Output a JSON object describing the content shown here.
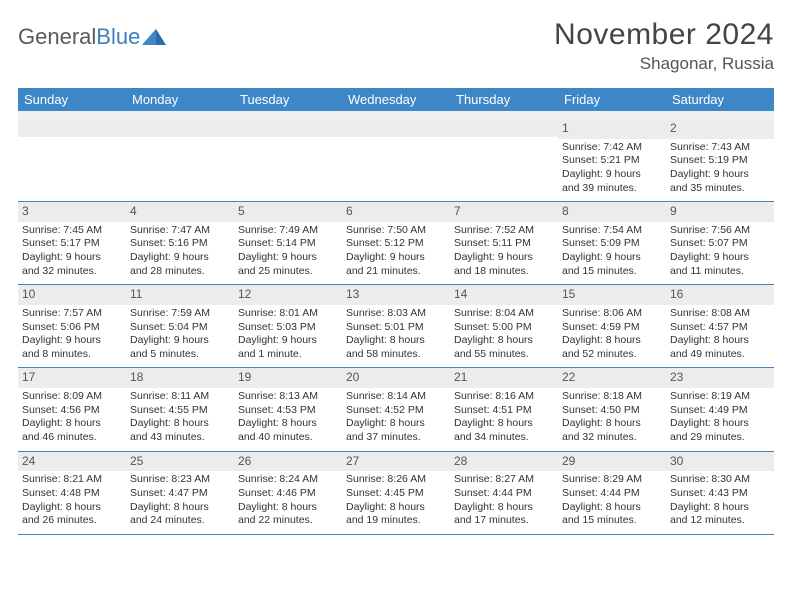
{
  "logo": {
    "word1": "General",
    "word2": "Blue"
  },
  "title": "November 2024",
  "location": "Shagonar, Russia",
  "weekdays": [
    "Sunday",
    "Monday",
    "Tuesday",
    "Wednesday",
    "Thursday",
    "Friday",
    "Saturday"
  ],
  "colors": {
    "header_bg": "#3d87c9",
    "header_text": "#ffffff",
    "number_bg": "#ececec",
    "row_border": "#3d87c9",
    "body_text": "#333333",
    "logo_blue": "#3d7fbf"
  },
  "font_sizes": {
    "title_pt": 22,
    "location_pt": 13,
    "weekday_pt": 10,
    "cell_pt": 8,
    "daynum_pt": 9
  },
  "weeks": [
    [
      {
        "n": "",
        "sr": "",
        "ss": "",
        "dl1": "",
        "dl2": ""
      },
      {
        "n": "",
        "sr": "",
        "ss": "",
        "dl1": "",
        "dl2": ""
      },
      {
        "n": "",
        "sr": "",
        "ss": "",
        "dl1": "",
        "dl2": ""
      },
      {
        "n": "",
        "sr": "",
        "ss": "",
        "dl1": "",
        "dl2": ""
      },
      {
        "n": "",
        "sr": "",
        "ss": "",
        "dl1": "",
        "dl2": ""
      },
      {
        "n": "1",
        "sr": "Sunrise: 7:42 AM",
        "ss": "Sunset: 5:21 PM",
        "dl1": "Daylight: 9 hours",
        "dl2": "and 39 minutes."
      },
      {
        "n": "2",
        "sr": "Sunrise: 7:43 AM",
        "ss": "Sunset: 5:19 PM",
        "dl1": "Daylight: 9 hours",
        "dl2": "and 35 minutes."
      }
    ],
    [
      {
        "n": "3",
        "sr": "Sunrise: 7:45 AM",
        "ss": "Sunset: 5:17 PM",
        "dl1": "Daylight: 9 hours",
        "dl2": "and 32 minutes."
      },
      {
        "n": "4",
        "sr": "Sunrise: 7:47 AM",
        "ss": "Sunset: 5:16 PM",
        "dl1": "Daylight: 9 hours",
        "dl2": "and 28 minutes."
      },
      {
        "n": "5",
        "sr": "Sunrise: 7:49 AM",
        "ss": "Sunset: 5:14 PM",
        "dl1": "Daylight: 9 hours",
        "dl2": "and 25 minutes."
      },
      {
        "n": "6",
        "sr": "Sunrise: 7:50 AM",
        "ss": "Sunset: 5:12 PM",
        "dl1": "Daylight: 9 hours",
        "dl2": "and 21 minutes."
      },
      {
        "n": "7",
        "sr": "Sunrise: 7:52 AM",
        "ss": "Sunset: 5:11 PM",
        "dl1": "Daylight: 9 hours",
        "dl2": "and 18 minutes."
      },
      {
        "n": "8",
        "sr": "Sunrise: 7:54 AM",
        "ss": "Sunset: 5:09 PM",
        "dl1": "Daylight: 9 hours",
        "dl2": "and 15 minutes."
      },
      {
        "n": "9",
        "sr": "Sunrise: 7:56 AM",
        "ss": "Sunset: 5:07 PM",
        "dl1": "Daylight: 9 hours",
        "dl2": "and 11 minutes."
      }
    ],
    [
      {
        "n": "10",
        "sr": "Sunrise: 7:57 AM",
        "ss": "Sunset: 5:06 PM",
        "dl1": "Daylight: 9 hours",
        "dl2": "and 8 minutes."
      },
      {
        "n": "11",
        "sr": "Sunrise: 7:59 AM",
        "ss": "Sunset: 5:04 PM",
        "dl1": "Daylight: 9 hours",
        "dl2": "and 5 minutes."
      },
      {
        "n": "12",
        "sr": "Sunrise: 8:01 AM",
        "ss": "Sunset: 5:03 PM",
        "dl1": "Daylight: 9 hours",
        "dl2": "and 1 minute."
      },
      {
        "n": "13",
        "sr": "Sunrise: 8:03 AM",
        "ss": "Sunset: 5:01 PM",
        "dl1": "Daylight: 8 hours",
        "dl2": "and 58 minutes."
      },
      {
        "n": "14",
        "sr": "Sunrise: 8:04 AM",
        "ss": "Sunset: 5:00 PM",
        "dl1": "Daylight: 8 hours",
        "dl2": "and 55 minutes."
      },
      {
        "n": "15",
        "sr": "Sunrise: 8:06 AM",
        "ss": "Sunset: 4:59 PM",
        "dl1": "Daylight: 8 hours",
        "dl2": "and 52 minutes."
      },
      {
        "n": "16",
        "sr": "Sunrise: 8:08 AM",
        "ss": "Sunset: 4:57 PM",
        "dl1": "Daylight: 8 hours",
        "dl2": "and 49 minutes."
      }
    ],
    [
      {
        "n": "17",
        "sr": "Sunrise: 8:09 AM",
        "ss": "Sunset: 4:56 PM",
        "dl1": "Daylight: 8 hours",
        "dl2": "and 46 minutes."
      },
      {
        "n": "18",
        "sr": "Sunrise: 8:11 AM",
        "ss": "Sunset: 4:55 PM",
        "dl1": "Daylight: 8 hours",
        "dl2": "and 43 minutes."
      },
      {
        "n": "19",
        "sr": "Sunrise: 8:13 AM",
        "ss": "Sunset: 4:53 PM",
        "dl1": "Daylight: 8 hours",
        "dl2": "and 40 minutes."
      },
      {
        "n": "20",
        "sr": "Sunrise: 8:14 AM",
        "ss": "Sunset: 4:52 PM",
        "dl1": "Daylight: 8 hours",
        "dl2": "and 37 minutes."
      },
      {
        "n": "21",
        "sr": "Sunrise: 8:16 AM",
        "ss": "Sunset: 4:51 PM",
        "dl1": "Daylight: 8 hours",
        "dl2": "and 34 minutes."
      },
      {
        "n": "22",
        "sr": "Sunrise: 8:18 AM",
        "ss": "Sunset: 4:50 PM",
        "dl1": "Daylight: 8 hours",
        "dl2": "and 32 minutes."
      },
      {
        "n": "23",
        "sr": "Sunrise: 8:19 AM",
        "ss": "Sunset: 4:49 PM",
        "dl1": "Daylight: 8 hours",
        "dl2": "and 29 minutes."
      }
    ],
    [
      {
        "n": "24",
        "sr": "Sunrise: 8:21 AM",
        "ss": "Sunset: 4:48 PM",
        "dl1": "Daylight: 8 hours",
        "dl2": "and 26 minutes."
      },
      {
        "n": "25",
        "sr": "Sunrise: 8:23 AM",
        "ss": "Sunset: 4:47 PM",
        "dl1": "Daylight: 8 hours",
        "dl2": "and 24 minutes."
      },
      {
        "n": "26",
        "sr": "Sunrise: 8:24 AM",
        "ss": "Sunset: 4:46 PM",
        "dl1": "Daylight: 8 hours",
        "dl2": "and 22 minutes."
      },
      {
        "n": "27",
        "sr": "Sunrise: 8:26 AM",
        "ss": "Sunset: 4:45 PM",
        "dl1": "Daylight: 8 hours",
        "dl2": "and 19 minutes."
      },
      {
        "n": "28",
        "sr": "Sunrise: 8:27 AM",
        "ss": "Sunset: 4:44 PM",
        "dl1": "Daylight: 8 hours",
        "dl2": "and 17 minutes."
      },
      {
        "n": "29",
        "sr": "Sunrise: 8:29 AM",
        "ss": "Sunset: 4:44 PM",
        "dl1": "Daylight: 8 hours",
        "dl2": "and 15 minutes."
      },
      {
        "n": "30",
        "sr": "Sunrise: 8:30 AM",
        "ss": "Sunset: 4:43 PM",
        "dl1": "Daylight: 8 hours",
        "dl2": "and 12 minutes."
      }
    ]
  ]
}
